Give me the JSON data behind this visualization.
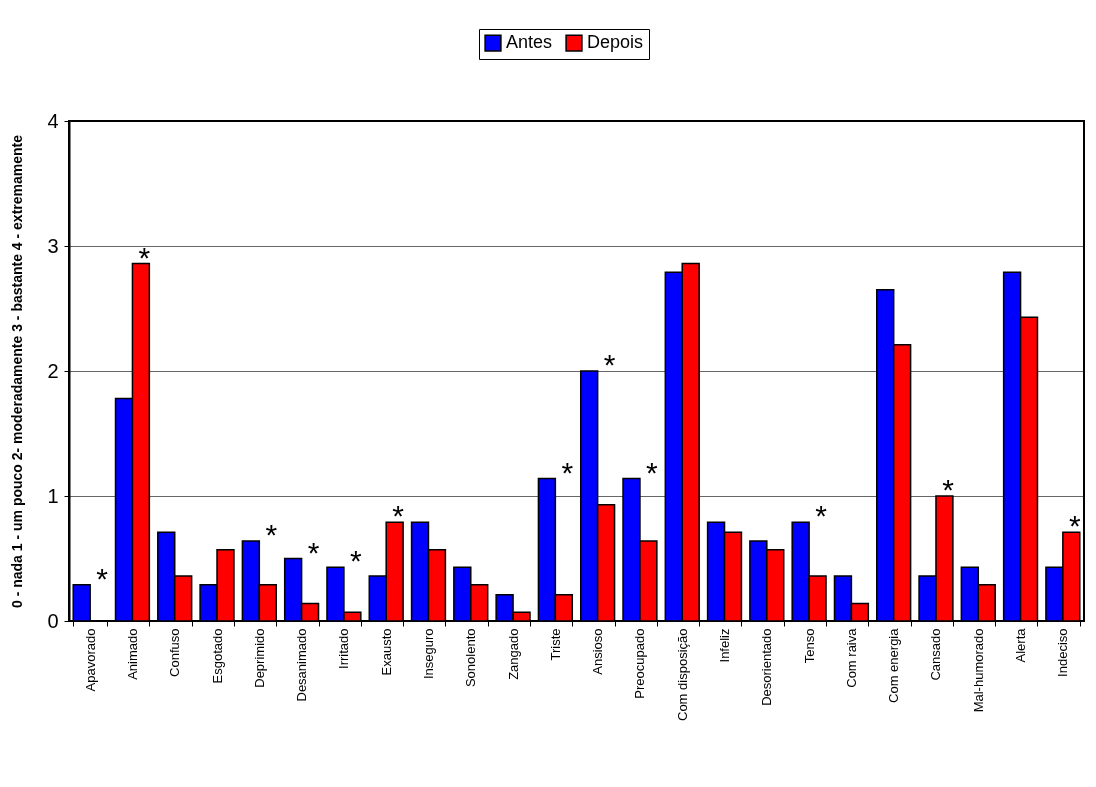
{
  "chart_data": {
    "type": "bar",
    "ylabel": "0 - nada 1 - um pouco 2- moderadamente 3 - bastante 4 - extremamente",
    "categories": [
      "Apavorado",
      "Animado",
      "Confuso",
      "Esgotado",
      "Deprimido",
      "Desanimado",
      "Irritado",
      "Exausto",
      "Inseguro",
      "Sonolento",
      "Zangado",
      "Triste",
      "Ansioso",
      "Preocupado",
      "Com disposição",
      "Infeliz",
      "Desorientado",
      "Tenso",
      "Com raiva",
      "Com energia",
      "Cansado",
      "Mal-humorado",
      "Alerta",
      "Indeciso"
    ],
    "series": [
      {
        "name": "Antes",
        "color": "#0000ff",
        "values": [
          0.29,
          1.78,
          0.71,
          0.29,
          0.64,
          0.5,
          0.43,
          0.36,
          0.79,
          0.43,
          0.21,
          1.14,
          2.0,
          1.14,
          2.79,
          0.79,
          0.64,
          0.79,
          0.36,
          2.65,
          0.36,
          0.43,
          2.79,
          0.43
        ]
      },
      {
        "name": "Depois",
        "color": "#ff0000",
        "values": [
          0,
          2.86,
          0.36,
          0.57,
          0.29,
          0.14,
          0.07,
          0.79,
          0.57,
          0.29,
          0.07,
          0.21,
          0.93,
          0.64,
          2.86,
          0.71,
          0.57,
          0.36,
          0.14,
          2.21,
          1.0,
          0.29,
          2.43,
          0.71
        ]
      }
    ],
    "ylim": [
      0,
      4
    ],
    "yticks": [
      0,
      1,
      2,
      3,
      4
    ],
    "grid": "y",
    "legend": "top",
    "annotations": [
      {
        "text": "*",
        "x": "Apavorado",
        "y": 0.29
      },
      {
        "text": "*",
        "x": "Animado",
        "y": 2.86
      },
      {
        "text": "*",
        "x": "Deprimido",
        "y": 0.64
      },
      {
        "text": "*",
        "x": "Desanimado",
        "y": 0.5
      },
      {
        "text": "*",
        "x": "Irritado",
        "y": 0.43
      },
      {
        "text": "*",
        "x": "Exausto",
        "y": 0.79
      },
      {
        "text": "*",
        "x": "Triste",
        "y": 1.14
      },
      {
        "text": "*",
        "x": "Ansioso",
        "y": 2.0
      },
      {
        "text": "*",
        "x": "Preocupado",
        "y": 1.14
      },
      {
        "text": "*",
        "x": "Tenso",
        "y": 0.79
      },
      {
        "text": "*",
        "x": "Cansado",
        "y": 1.0
      },
      {
        "text": "*",
        "x": "Indeciso",
        "y": 0.71
      }
    ]
  }
}
